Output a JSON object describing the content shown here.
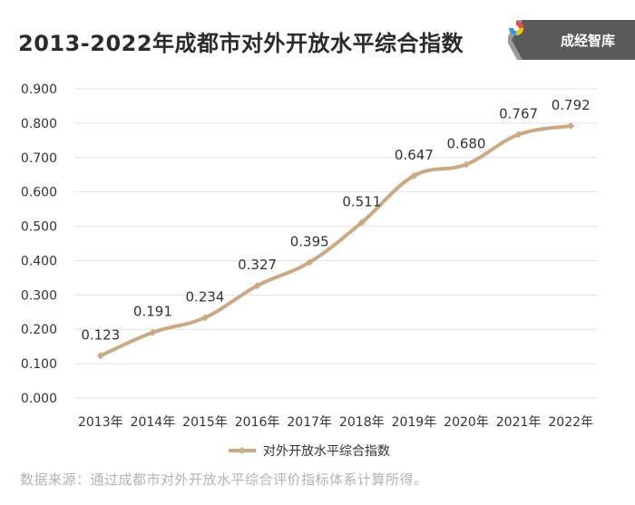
{
  "title": "2013-2022年成都市对外开放水平综合指数",
  "brand": {
    "name": "成经智库",
    "icon": "chengjing-logo-icon"
  },
  "footer": "数据来源：通过成都市对外开放水平综合评价指标体系计算所得。",
  "colors": {
    "line": "#c9aa84",
    "grid": "#e3e3e3",
    "text": "#333333",
    "brand_bg": "#555555"
  },
  "chart_data": {
    "type": "line",
    "title": "2013-2022年成都市对外开放水平综合指数",
    "categories": [
      "2013年",
      "2014年",
      "2015年",
      "2016年",
      "2017年",
      "2018年",
      "2019年",
      "2020年",
      "2021年",
      "2022年"
    ],
    "y_ticks": [
      "0.000",
      "0.100",
      "0.200",
      "0.300",
      "0.400",
      "0.500",
      "0.600",
      "0.700",
      "0.800",
      "0.900"
    ],
    "ylim": [
      0,
      0.9
    ],
    "grid": true,
    "legend_position": "bottom",
    "series": [
      {
        "name": "对外开放水平综合指数",
        "values": [
          0.123,
          0.191,
          0.234,
          0.327,
          0.395,
          0.511,
          0.647,
          0.68,
          0.767,
          0.792
        ],
        "labels": [
          "0.123",
          "0.191",
          "0.234",
          "0.327",
          "0.395",
          "0.511",
          "0.647",
          "0.680",
          "0.767",
          "0.792"
        ]
      }
    ]
  }
}
